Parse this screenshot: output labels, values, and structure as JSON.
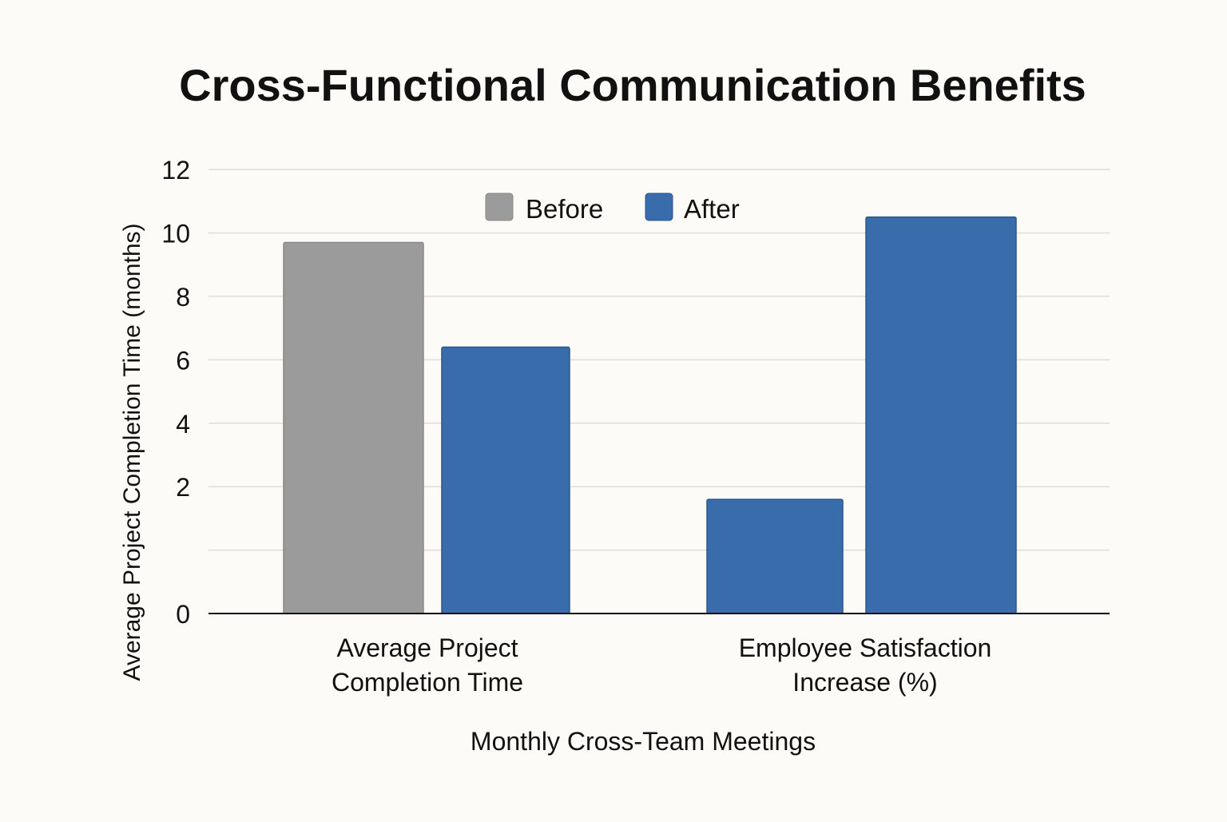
{
  "chart_data": {
    "type": "bar",
    "title": "Cross-Functional Communication Benefits",
    "xlabel": "Monthly Cross-Team Meetings",
    "ylabel": "Average Project Completion Time (months)",
    "categories": [
      "Average Project Completion Time",
      "Employee Satisfaction Increase (%)"
    ],
    "category_lines": [
      [
        "Average Project",
        "Completion Time"
      ],
      [
        "Employee Satisfaction",
        "Increase (%)"
      ]
    ],
    "series": [
      {
        "name": "Before",
        "values": [
          9.7,
          1.8
        ],
        "colors": [
          "#9b9b9b",
          "#386cab"
        ]
      },
      {
        "name": "After",
        "values": [
          6.4,
          10.5
        ],
        "colors": [
          "#386cab",
          "#386cab"
        ]
      }
    ],
    "legend": [
      {
        "label": "Before",
        "color": "#9b9b9b"
      },
      {
        "label": "After",
        "color": "#386cab"
      }
    ],
    "yticks": [
      "0",
      "2",
      "4",
      "6",
      "8",
      "10",
      "12"
    ],
    "ylim": [
      0,
      12
    ],
    "grid": true,
    "legend_position": "top-center"
  }
}
